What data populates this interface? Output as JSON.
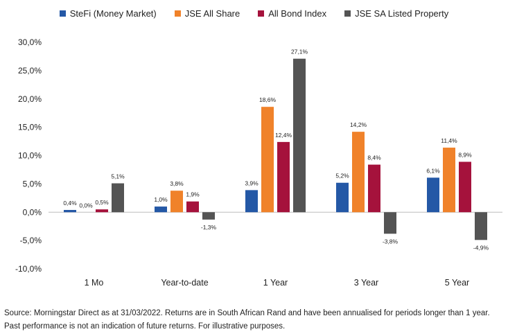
{
  "chart_data": {
    "type": "bar",
    "categories": [
      "1 Mo",
      "Year-to-date",
      "1 Year",
      "3 Year",
      "5 Year"
    ],
    "series": [
      {
        "name": "SteFi (Money Market)",
        "color": "#2458a6",
        "values": [
          0.4,
          1.0,
          3.9,
          5.2,
          6.1
        ],
        "labels": [
          "0,4%",
          "1,0%",
          "3,9%",
          "5,2%",
          "6,1%"
        ]
      },
      {
        "name": "JSE All Share",
        "color": "#f0822a",
        "values": [
          0.0,
          3.8,
          18.6,
          14.2,
          11.4
        ],
        "labels": [
          "0,0%",
          "3,8%",
          "18,6%",
          "14,2%",
          "11,4%"
        ]
      },
      {
        "name": "All Bond Index",
        "color": "#a5123c",
        "values": [
          0.5,
          1.9,
          12.4,
          8.4,
          8.9
        ],
        "labels": [
          "0,5%",
          "1,9%",
          "12,4%",
          "8,4%",
          "8,9%"
        ]
      },
      {
        "name": "JSE SA Listed Property",
        "color": "#545454",
        "values": [
          5.1,
          -1.3,
          27.1,
          -3.8,
          -4.9
        ],
        "labels": [
          "5,1%",
          "-1,3%",
          "27,1%",
          "-3,8%",
          "-4,9%"
        ]
      }
    ],
    "yticks": [
      30,
      25,
      20,
      15,
      10,
      5,
      0,
      -5,
      -10
    ],
    "ytick_labels": [
      "30,0%",
      "25,0%",
      "20,0%",
      "15,0%",
      "10,0%",
      "5,0%",
      "0,0%",
      "-5,0%",
      "-10,0%"
    ],
    "ylim": [
      -10,
      30
    ],
    "grid": false,
    "legend_position": "top"
  },
  "footer": {
    "line1": "Source: Morningstar Direct as at 31/03/2022. Returns are in South African Rand and have been annualised for periods longer than 1 year.",
    "line2": "Past performance is not an indication of future returns. For illustrative purposes."
  }
}
